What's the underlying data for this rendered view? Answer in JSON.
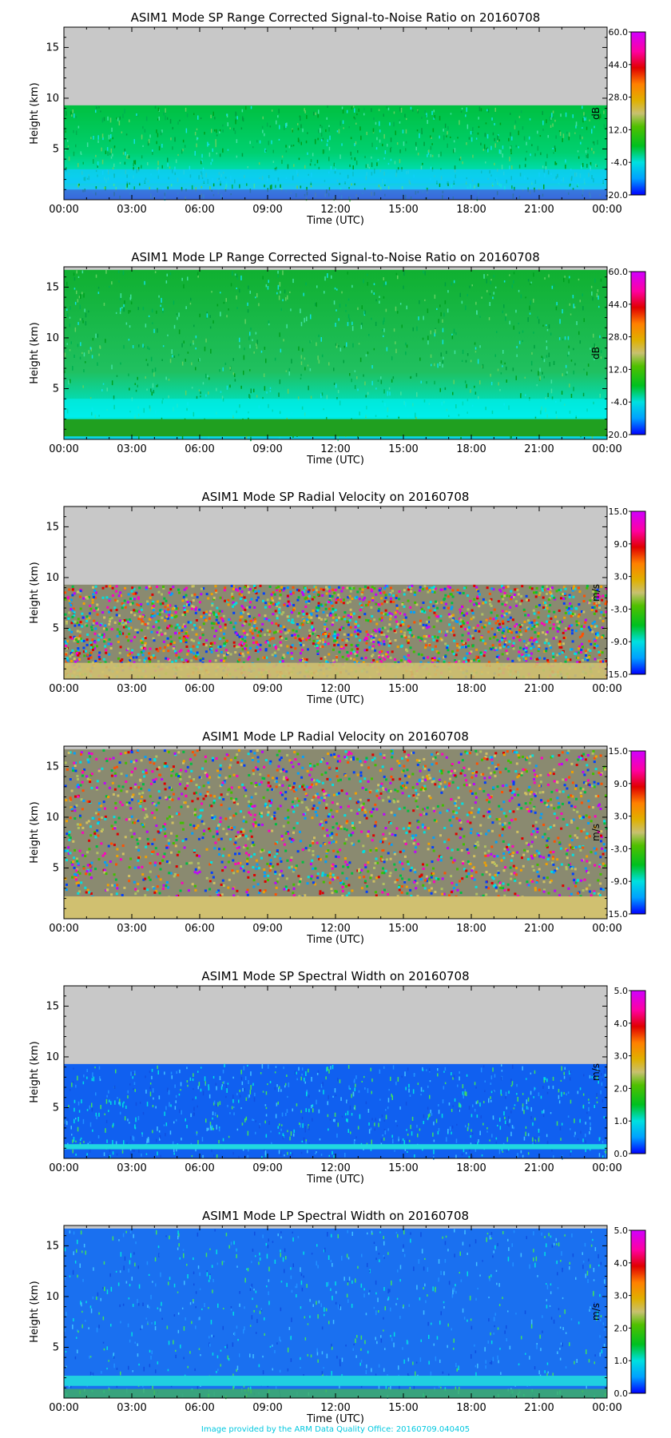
{
  "footer": "Image provided by the ARM Data Quality Office: 20160709.040405",
  "chart_data": [
    {
      "type": "heatmap",
      "title": "ASIM1 Mode SP Range Corrected Signal-to-Noise Ratio on 20160708",
      "xlabel": "Time (UTC)",
      "ylabel": "Height (km)",
      "x_ticks": [
        "00:00",
        "03:00",
        "06:00",
        "09:00",
        "12:00",
        "15:00",
        "18:00",
        "21:00",
        "00:00"
      ],
      "y_ticks": [
        5,
        10,
        15
      ],
      "ylim": [
        0,
        17
      ],
      "data_top_km": 9.3,
      "fill": "snr_sp",
      "colorbar": {
        "label": "dB",
        "ticks": [
          "60.0",
          "44.0",
          "28.0",
          "12.0",
          "-4.0",
          "-20.0"
        ],
        "range": [
          -20,
          60
        ],
        "palette": "rainbow"
      }
    },
    {
      "type": "heatmap",
      "title": "ASIM1 Mode LP Range Corrected Signal-to-Noise Ratio on 20160708",
      "xlabel": "Time (UTC)",
      "ylabel": "Height (km)",
      "x_ticks": [
        "00:00",
        "03:00",
        "06:00",
        "09:00",
        "12:00",
        "15:00",
        "18:00",
        "21:00",
        "00:00"
      ],
      "y_ticks": [
        5,
        10,
        15
      ],
      "ylim": [
        0,
        17
      ],
      "data_top_km": 16.7,
      "fill": "snr_lp",
      "colorbar": {
        "label": "dB",
        "ticks": [
          "60.0",
          "44.0",
          "28.0",
          "12.0",
          "-4.0",
          "-20.0"
        ],
        "range": [
          -20,
          60
        ],
        "palette": "rainbow"
      }
    },
    {
      "type": "heatmap",
      "title": "ASIM1 Mode SP Radial Velocity  on 20160708",
      "xlabel": "Time (UTC)",
      "ylabel": "Height (km)",
      "x_ticks": [
        "00:00",
        "03:00",
        "06:00",
        "09:00",
        "12:00",
        "15:00",
        "18:00",
        "21:00",
        "00:00"
      ],
      "y_ticks": [
        5,
        10,
        15
      ],
      "ylim": [
        0,
        17
      ],
      "data_top_km": 9.3,
      "fill": "vel_sp",
      "colorbar": {
        "label": "m/s",
        "ticks": [
          "15.0",
          "9.0",
          "3.0",
          "-3.0",
          "-9.0",
          "-15.0"
        ],
        "range": [
          -15,
          15
        ],
        "palette": "rainbow"
      }
    },
    {
      "type": "heatmap",
      "title": "ASIM1 Mode LP Radial Velocity  on 20160708",
      "xlabel": "Time (UTC)",
      "ylabel": "Height (km)",
      "x_ticks": [
        "00:00",
        "03:00",
        "06:00",
        "09:00",
        "12:00",
        "15:00",
        "18:00",
        "21:00",
        "00:00"
      ],
      "y_ticks": [
        5,
        10,
        15
      ],
      "ylim": [
        0,
        17
      ],
      "data_top_km": 16.7,
      "fill": "vel_lp",
      "colorbar": {
        "label": "m/s",
        "ticks": [
          "15.0",
          "9.0",
          "3.0",
          "-3.0",
          "-9.0",
          "-15.0"
        ],
        "range": [
          -15,
          15
        ],
        "palette": "rainbow"
      }
    },
    {
      "type": "heatmap",
      "title": "ASIM1 Mode SP Spectral Width  on 20160708",
      "xlabel": "Time (UTC)",
      "ylabel": "Height (km)",
      "x_ticks": [
        "00:00",
        "03:00",
        "06:00",
        "09:00",
        "12:00",
        "15:00",
        "18:00",
        "21:00",
        "00:00"
      ],
      "y_ticks": [
        5,
        10,
        15
      ],
      "ylim": [
        0,
        17
      ],
      "data_top_km": 9.3,
      "fill": "sw_sp",
      "colorbar": {
        "label": "m/s",
        "ticks": [
          "5.0",
          "4.0",
          "3.0",
          "2.0",
          "1.0",
          "0.0"
        ],
        "range": [
          0,
          5
        ],
        "palette": "rainbow"
      }
    },
    {
      "type": "heatmap",
      "title": "ASIM1 Mode LP Spectral Width  on 20160708",
      "xlabel": "Time (UTC)",
      "ylabel": "Height (km)",
      "x_ticks": [
        "00:00",
        "03:00",
        "06:00",
        "09:00",
        "12:00",
        "15:00",
        "18:00",
        "21:00",
        "00:00"
      ],
      "y_ticks": [
        5,
        10,
        15
      ],
      "ylim": [
        0,
        17
      ],
      "data_top_km": 16.7,
      "fill": "sw_lp",
      "colorbar": {
        "label": "m/s",
        "ticks": [
          "5.0",
          "4.0",
          "3.0",
          "2.0",
          "1.0",
          "0.0"
        ],
        "range": [
          0,
          5
        ],
        "palette": "rainbow"
      }
    }
  ]
}
